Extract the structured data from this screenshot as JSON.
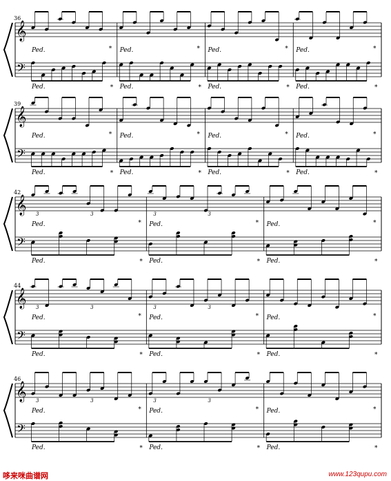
{
  "score": {
    "systems": [
      {
        "measure_number": "36",
        "measures_per_system": 4
      },
      {
        "measure_number": "39",
        "measures_per_system": 4
      },
      {
        "measure_number": "42",
        "measures_per_system": 3
      },
      {
        "measure_number": "44",
        "measures_per_system": 3
      },
      {
        "measure_number": "46",
        "measures_per_system": 3
      }
    ],
    "pedal_mark": "Ped.",
    "pedal_release": "*",
    "triplet_mark": "3"
  },
  "footer": {
    "site_name": "哆来咪曲谱网",
    "site_url": "www.123qupu.com"
  }
}
